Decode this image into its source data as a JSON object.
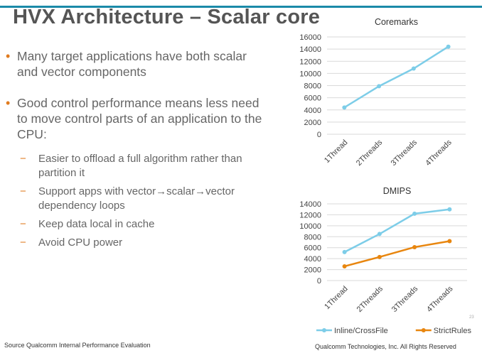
{
  "slide": {
    "title": "HVX Architecture – Scalar core",
    "bullets": [
      {
        "text": "Many target applications have both scalar and vector components",
        "subs": []
      },
      {
        "text": "Good control performance means less need to move control parts of an application to the CPU:",
        "subs": [
          "Easier to offload a full algorithm rather than partition it",
          "Support apps with vector→scalar→vector dependency loops",
          "Keep data local in cache",
          "Avoid CPU power"
        ]
      }
    ],
    "bullet_marker": "•",
    "sub_marker": "−",
    "footer_source": "Source Qualcomm Internal Performance Evaluation",
    "footer_copyright": "Qualcomm Technologies, Inc. All Rights Reserved",
    "page_number": "23"
  },
  "colors": {
    "top_rule": "#1b8aa8",
    "text": "#666666",
    "bullet_orange": "#e07b1f",
    "series_blue": "#7dcde8",
    "series_orange": "#e8860f",
    "grid": "#d9d9d9"
  },
  "chart_data": [
    {
      "type": "line",
      "title": "Coremarks",
      "categories": [
        "1Thread",
        "2Threads",
        "3Threads",
        "4Threads"
      ],
      "series": [
        {
          "values": [
            4400,
            7900,
            10800,
            14400
          ],
          "color": "#7dcde8"
        }
      ],
      "yticks": [
        0,
        2000,
        4000,
        6000,
        8000,
        10000,
        12000,
        14000,
        16000
      ],
      "ylim": [
        0,
        16000
      ],
      "grid": true,
      "legend": "none"
    },
    {
      "type": "line",
      "title": "DMIPS",
      "categories": [
        "1Thread",
        "2Threads",
        "3Threads",
        "4Threads"
      ],
      "series": [
        {
          "name": "Inline/CrossFile",
          "values": [
            5200,
            8500,
            12200,
            13000
          ],
          "color": "#7dcde8"
        },
        {
          "name": "StrictRules",
          "values": [
            2600,
            4300,
            6100,
            7200
          ],
          "color": "#e8860f"
        }
      ],
      "yticks": [
        0,
        2000,
        4000,
        6000,
        8000,
        10000,
        12000,
        14000
      ],
      "ylim": [
        0,
        14000
      ],
      "grid": true,
      "legend": "bottom"
    }
  ]
}
